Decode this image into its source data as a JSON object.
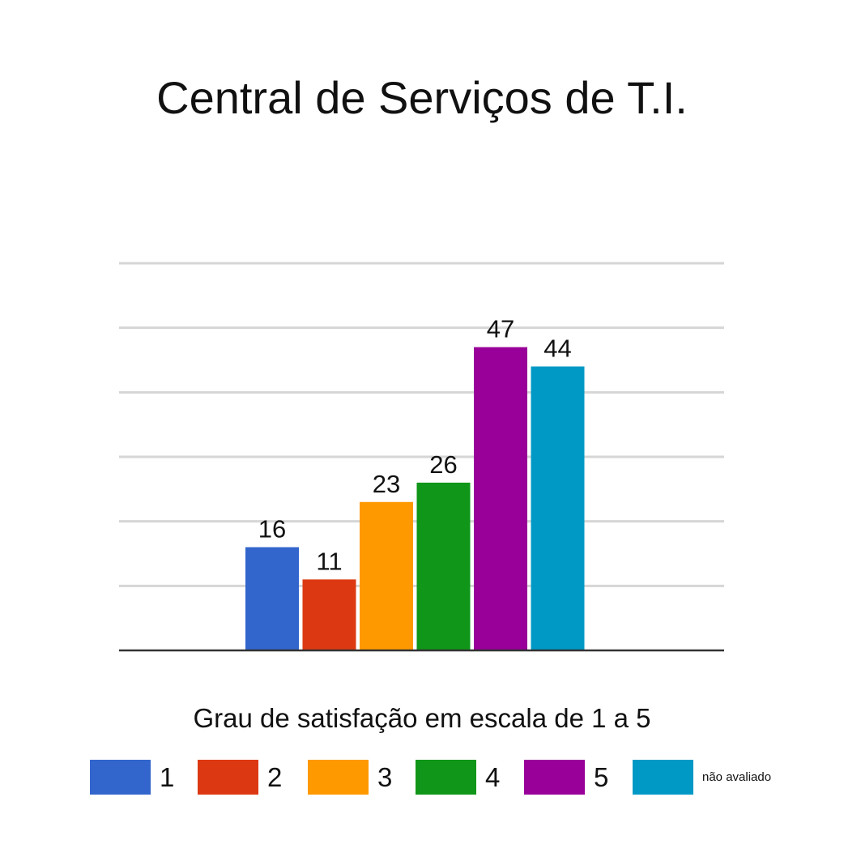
{
  "chart_data": {
    "type": "bar",
    "title": "Central de Serviços de T.I.",
    "subtitle": "Grau de satisfação em escala de 1 a 5",
    "categories": [
      "1",
      "2",
      "3",
      "4",
      "5",
      "não avaliado"
    ],
    "values": [
      16,
      11,
      23,
      26,
      47,
      44
    ],
    "colors": [
      "#3366cc",
      "#dc3912",
      "#ff9900",
      "#109618",
      "#990099",
      "#0099c6"
    ],
    "ylim": [
      0,
      60
    ],
    "grid": true,
    "legend": "bottom",
    "xlabel": "",
    "ylabel": ""
  }
}
